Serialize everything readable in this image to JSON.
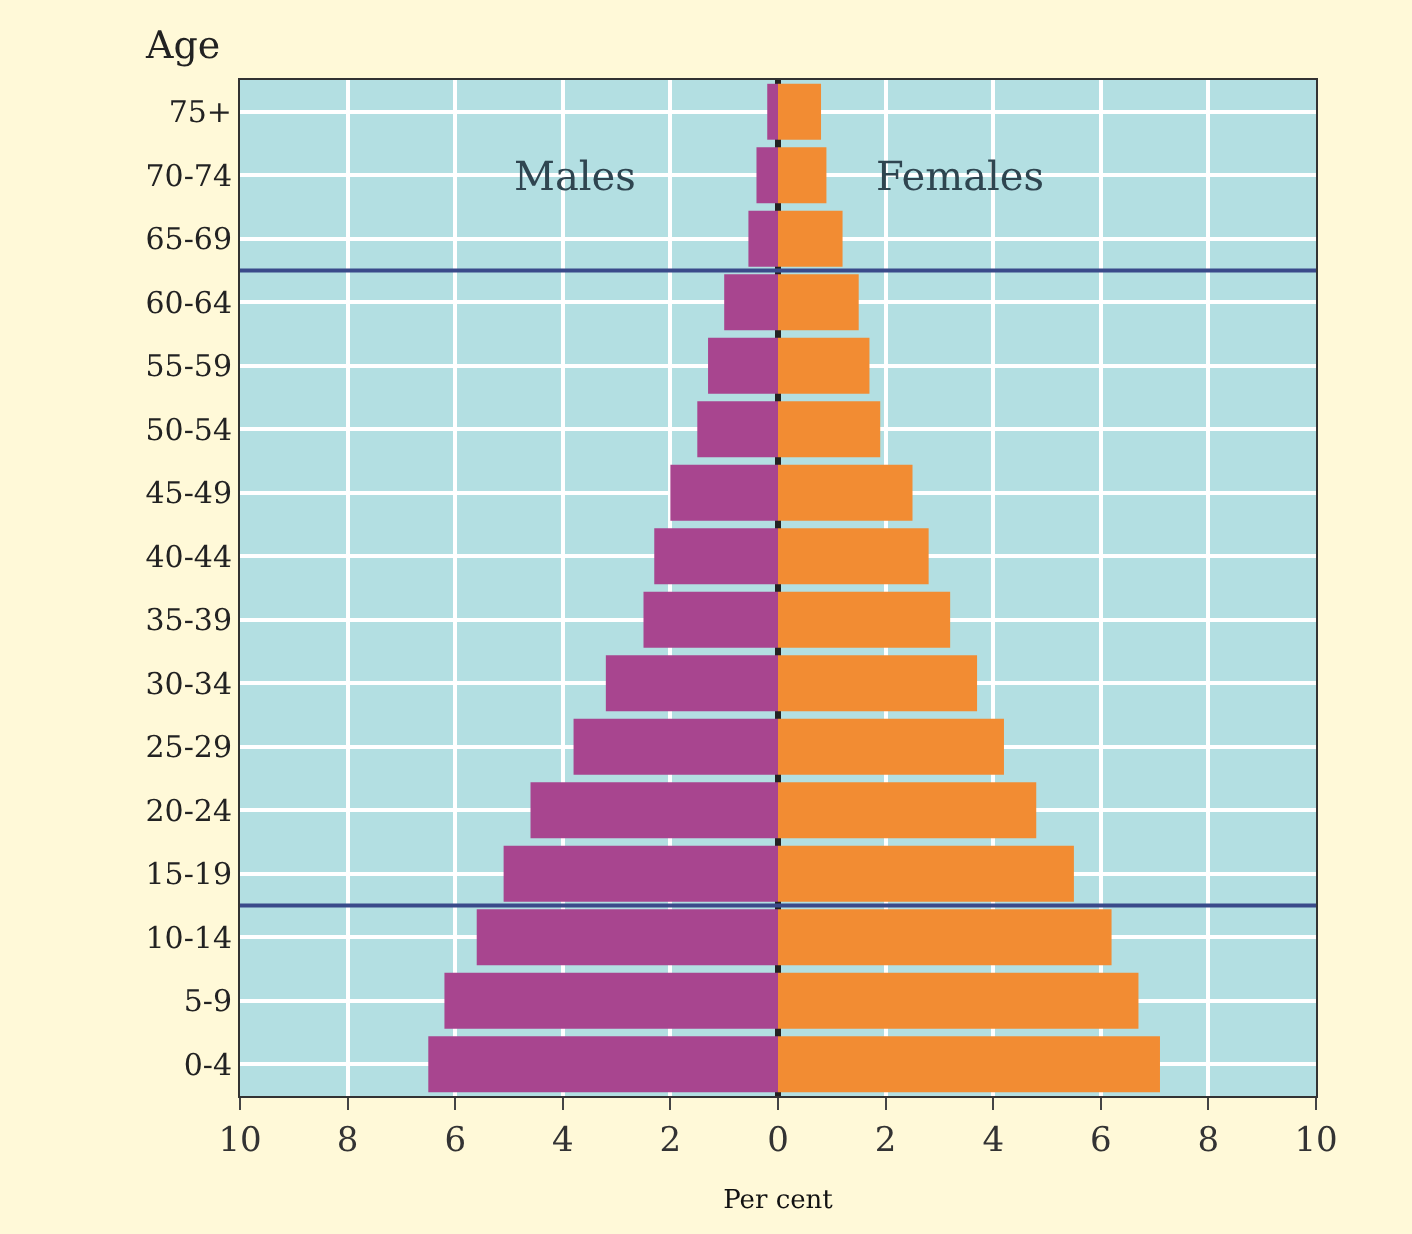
{
  "chart_data": {
    "type": "bar",
    "orientation": "horizontal",
    "stacked": true,
    "ylabel": "Age",
    "xlabel": "Per cent",
    "categories": [
      "75+",
      "70-74",
      "65-69",
      "60-64",
      "55-59",
      "50-54",
      "45-49",
      "40-44",
      "35-39",
      "30-34",
      "25-29",
      "20-24",
      "15-19",
      "10-14",
      "5-9",
      "0-4"
    ],
    "series": [
      {
        "name": "Males",
        "color": "#a8458f",
        "values": [
          -0.2,
          -0.4,
          -0.55,
          -1.0,
          -1.3,
          -1.5,
          -2.0,
          -2.3,
          -2.5,
          -3.2,
          -3.8,
          -4.6,
          -5.1,
          -5.6,
          -6.2,
          -6.5
        ]
      },
      {
        "name": "Females",
        "color": "#f28c33",
        "values": [
          0.8,
          0.9,
          1.2,
          1.5,
          1.7,
          1.9,
          2.5,
          2.8,
          3.2,
          3.7,
          4.2,
          4.8,
          5.5,
          6.2,
          6.7,
          7.1
        ]
      }
    ],
    "xlim": [
      -10,
      10
    ],
    "xticks": [
      {
        "value": -10,
        "label": "10"
      },
      {
        "value": -8,
        "label": "8"
      },
      {
        "value": -6,
        "label": "6"
      },
      {
        "value": -4,
        "label": "4"
      },
      {
        "value": -2,
        "label": "2"
      },
      0,
      2,
      4,
      6,
      8,
      10
    ],
    "grid": true
  }
}
